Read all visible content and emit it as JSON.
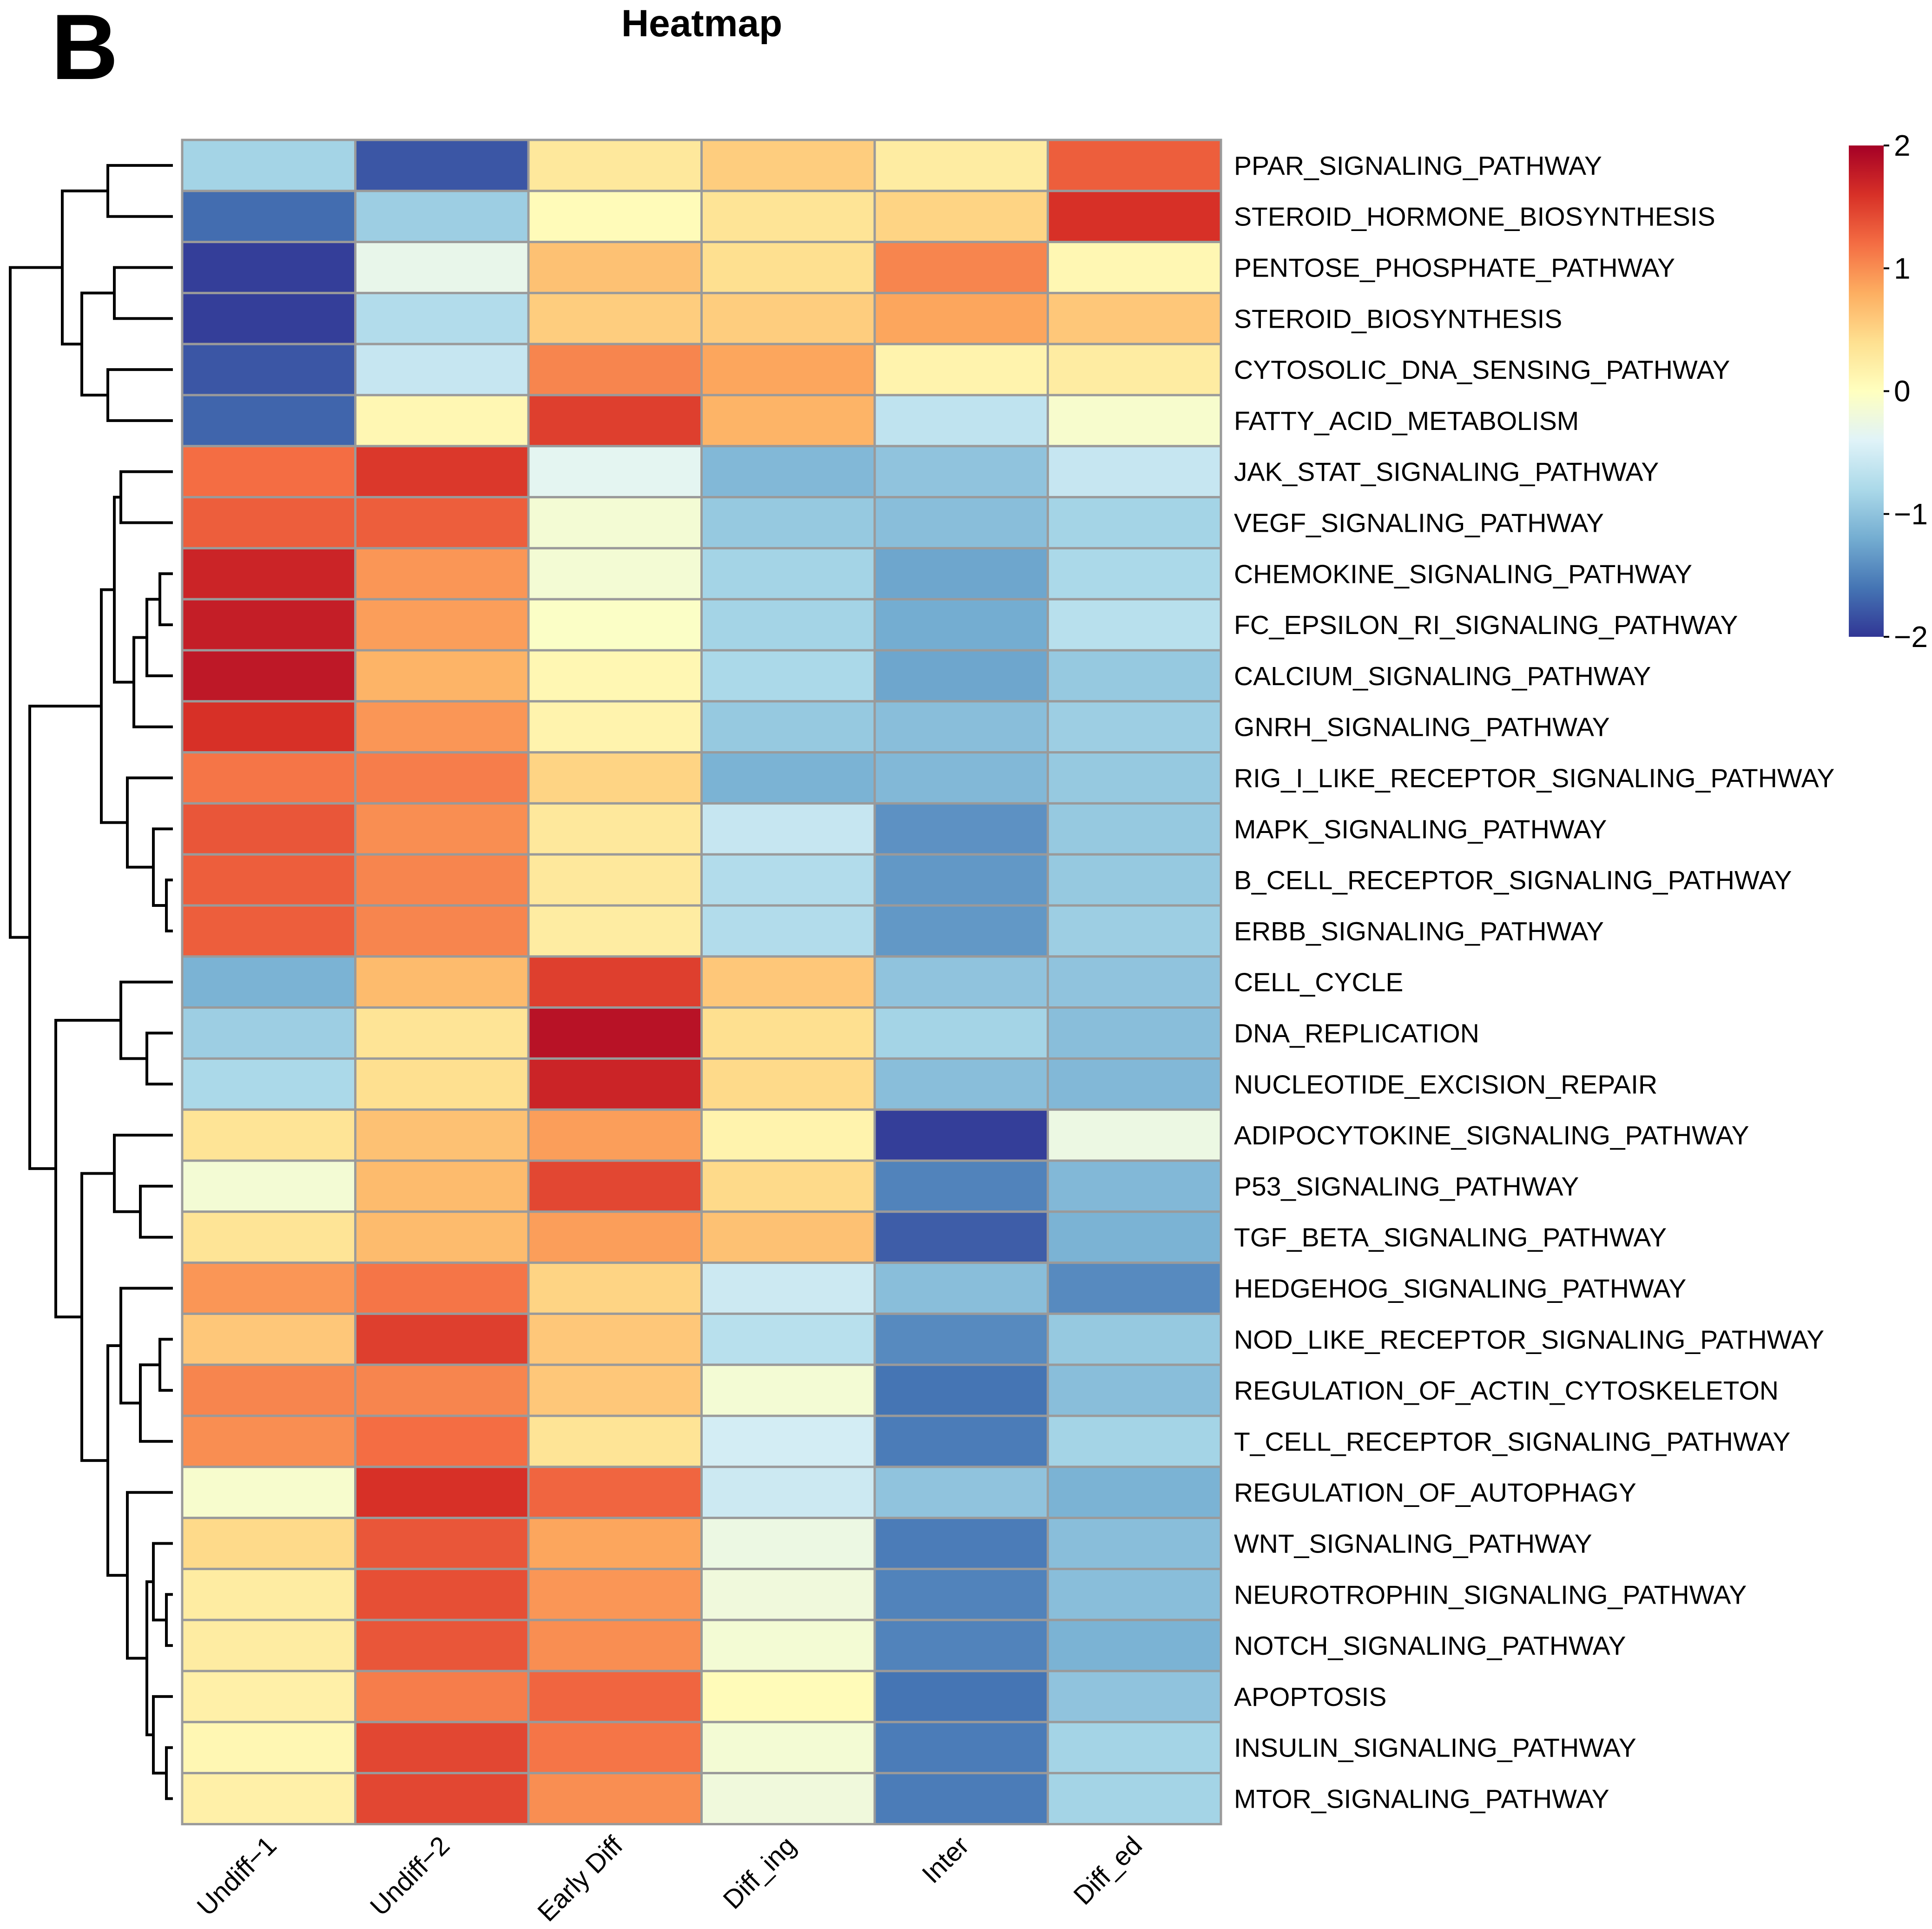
{
  "panel_label": "B",
  "chart_data": {
    "type": "heatmap",
    "title": "Heatmap",
    "columns": [
      "Undiff−1",
      "Undiff−2",
      "Early Diff",
      "Diff_ing",
      "Inter",
      "Diff_ed"
    ],
    "rows": [
      "PPAR_SIGNALING_PATHWAY",
      "STEROID_HORMONE_BIOSYNTHESIS",
      "PENTOSE_PHOSPHATE_PATHWAY",
      "STEROID_BIOSYNTHESIS",
      "CYTOSOLIC_DNA_SENSING_PATHWAY",
      "FATTY_ACID_METABOLISM",
      "JAK_STAT_SIGNALING_PATHWAY",
      "VEGF_SIGNALING_PATHWAY",
      "CHEMOKINE_SIGNALING_PATHWAY",
      "FC_EPSILON_RI_SIGNALING_PATHWAY",
      "CALCIUM_SIGNALING_PATHWAY",
      "GNRH_SIGNALING_PATHWAY",
      "RIG_I_LIKE_RECEPTOR_SIGNALING_PATHWAY",
      "MAPK_SIGNALING_PATHWAY",
      "B_CELL_RECEPTOR_SIGNALING_PATHWAY",
      "ERBB_SIGNALING_PATHWAY",
      "CELL_CYCLE",
      "DNA_REPLICATION",
      "NUCLEOTIDE_EXCISION_REPAIR",
      "ADIPOCYTOKINE_SIGNALING_PATHWAY",
      "P53_SIGNALING_PATHWAY",
      "TGF_BETA_SIGNALING_PATHWAY",
      "HEDGEHOG_SIGNALING_PATHWAY",
      "NOD_LIKE_RECEPTOR_SIGNALING_PATHWAY",
      "REGULATION_OF_ACTIN_CYTOSKELETON",
      "T_CELL_RECEPTOR_SIGNALING_PATHWAY",
      "REGULATION_OF_AUTOPHAGY",
      "WNT_SIGNALING_PATHWAY",
      "NEUROTROPHIN_SIGNALING_PATHWAY",
      "NOTCH_SIGNALING_PATHWAY",
      "APOPTOSIS",
      "INSULIN_SIGNALING_PATHWAY",
      "MTOR_SIGNALING_PATHWAY"
    ],
    "values": [
      [
        -0.85,
        -1.8,
        0.3,
        0.55,
        0.25,
        1.3
      ],
      [
        -1.65,
        -0.9,
        0.05,
        0.35,
        0.5,
        1.6
      ],
      [
        -1.95,
        -0.3,
        0.65,
        0.4,
        1.05,
        0.1
      ],
      [
        -1.95,
        -0.75,
        0.55,
        0.55,
        0.85,
        0.6
      ],
      [
        -1.8,
        -0.6,
        1.05,
        0.85,
        0.15,
        0.25
      ],
      [
        -1.7,
        0.1,
        1.5,
        0.75,
        -0.65,
        -0.1
      ],
      [
        1.2,
        1.55,
        -0.35,
        -1.1,
        -1.0,
        -0.6
      ],
      [
        1.3,
        1.3,
        -0.15,
        -0.95,
        -1.05,
        -0.85
      ],
      [
        1.7,
        0.95,
        -0.15,
        -0.85,
        -1.25,
        -0.8
      ],
      [
        1.75,
        0.9,
        -0.05,
        -0.85,
        -1.2,
        -0.7
      ],
      [
        1.8,
        0.75,
        0.1,
        -0.8,
        -1.25,
        -0.95
      ],
      [
        1.6,
        0.95,
        0.15,
        -0.95,
        -1.05,
        -0.9
      ],
      [
        1.15,
        1.1,
        0.5,
        -1.15,
        -1.1,
        -0.95
      ],
      [
        1.35,
        1.0,
        0.3,
        -0.6,
        -1.4,
        -0.95
      ],
      [
        1.3,
        1.05,
        0.3,
        -0.75,
        -1.35,
        -0.95
      ],
      [
        1.3,
        1.05,
        0.25,
        -0.75,
        -1.35,
        -0.9
      ],
      [
        -1.15,
        0.7,
        1.5,
        0.6,
        -1.0,
        -1.0
      ],
      [
        -0.9,
        0.35,
        1.85,
        0.4,
        -0.85,
        -1.05
      ],
      [
        -0.8,
        0.4,
        1.7,
        0.45,
        -1.05,
        -1.1
      ],
      [
        0.35,
        0.65,
        0.9,
        0.15,
        -1.95,
        -0.25
      ],
      [
        -0.15,
        0.7,
        1.45,
        0.45,
        -1.5,
        -1.1
      ],
      [
        0.35,
        0.7,
        0.9,
        0.65,
        -1.75,
        -1.15
      ],
      [
        0.95,
        1.15,
        0.5,
        -0.55,
        -1.05,
        -1.45
      ],
      [
        0.6,
        1.5,
        0.6,
        -0.7,
        -1.45,
        -0.95
      ],
      [
        1.05,
        1.05,
        0.6,
        -0.15,
        -1.6,
        -1.05
      ],
      [
        1.0,
        1.2,
        0.35,
        -0.5,
        -1.55,
        -0.85
      ],
      [
        -0.1,
        1.6,
        1.25,
        -0.55,
        -1.0,
        -1.15
      ],
      [
        0.45,
        1.35,
        0.85,
        -0.25,
        -1.55,
        -1.05
      ],
      [
        0.25,
        1.4,
        0.95,
        -0.2,
        -1.5,
        -1.05
      ],
      [
        0.25,
        1.35,
        1.0,
        -0.15,
        -1.5,
        -1.15
      ],
      [
        0.2,
        1.1,
        1.25,
        0.05,
        -1.6,
        -1.0
      ],
      [
        0.1,
        1.45,
        1.15,
        -0.15,
        -1.55,
        -0.85
      ],
      [
        0.2,
        1.45,
        1.0,
        -0.2,
        -1.55,
        -0.85
      ]
    ],
    "legend": {
      "min": -2,
      "max": 2,
      "ticks": [
        2,
        1,
        0,
        -1,
        -2
      ],
      "tick_labels": [
        "2",
        "1",
        "0",
        "−1",
        "−2"
      ],
      "position": "top-right"
    },
    "colors": [
      "#313695",
      "#4575b4",
      "#74add1",
      "#abd9e9",
      "#e0f3f8",
      "#ffffbf",
      "#fee090",
      "#fdae61",
      "#f46d43",
      "#d73027",
      "#a50026"
    ],
    "dendrogram": {
      "leaves": 33,
      "merges": [
        [
          -1,
          -2,
          0.5
        ],
        [
          -3,
          -4,
          0.45
        ],
        [
          -5,
          -6,
          0.5
        ],
        [
          2,
          3,
          0.7
        ],
        [
          1,
          4,
          0.85
        ],
        [
          -9,
          -10,
          0.1
        ],
        [
          -11,
          6,
          0.2
        ],
        [
          -12,
          7,
          0.3
        ],
        [
          -7,
          -8,
          0.4
        ],
        [
          9,
          8,
          0.45
        ],
        [
          -15,
          -16,
          0.05
        ],
        [
          -14,
          11,
          0.15
        ],
        [
          -13,
          12,
          0.35
        ],
        [
          10,
          13,
          0.55
        ],
        [
          -18,
          -19,
          0.2
        ],
        [
          -17,
          15,
          0.4
        ],
        [
          -21,
          -22,
          0.25
        ],
        [
          -20,
          17,
          0.45
        ],
        [
          -24,
          -25,
          0.1
        ],
        [
          -26,
          19,
          0.25
        ],
        [
          -23,
          20,
          0.4
        ],
        [
          -32,
          -33,
          0.05
        ],
        [
          -31,
          22,
          0.15
        ],
        [
          -29,
          -30,
          0.05
        ],
        [
          -28,
          24,
          0.15
        ],
        [
          25,
          23,
          0.2
        ],
        [
          -27,
          26,
          0.35
        ],
        [
          21,
          27,
          0.5
        ],
        [
          18,
          28,
          0.7
        ],
        [
          16,
          29,
          0.9
        ],
        [
          14,
          30,
          1.1
        ],
        [
          5,
          31,
          1.25
        ]
      ]
    }
  }
}
